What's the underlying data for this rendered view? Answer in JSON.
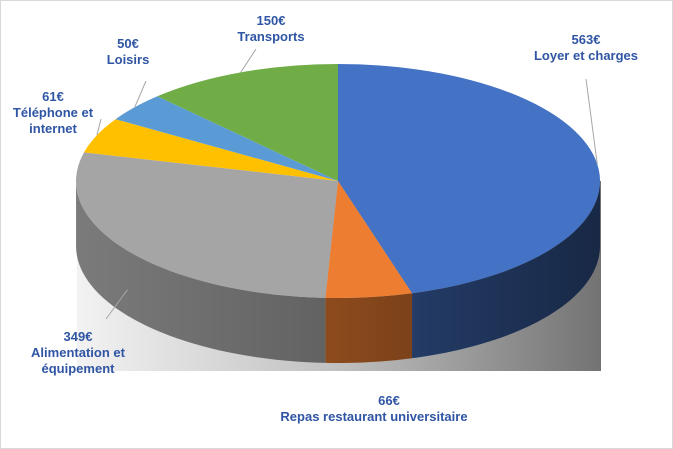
{
  "chart_data": {
    "type": "pie",
    "style": "3d",
    "title": "",
    "legend": "none",
    "data_labels": "outside",
    "categories": [
      "Loyer et charges",
      "Repas restaurant universitaire",
      "Alimentation et\néquipement",
      "Téléphone et\ninternet",
      "Loisirs",
      "Transports"
    ],
    "values": [
      563,
      66,
      349,
      61,
      50,
      150
    ],
    "value_labels": [
      "563€",
      "66€",
      "349€",
      "61€",
      "50€",
      "150€"
    ],
    "colors": [
      "#4472c4",
      "#ed7d31",
      "#a5a5a5",
      "#ffc000",
      "#5b9bd5",
      "#70ad47"
    ],
    "label_color": "#2f55a4"
  }
}
